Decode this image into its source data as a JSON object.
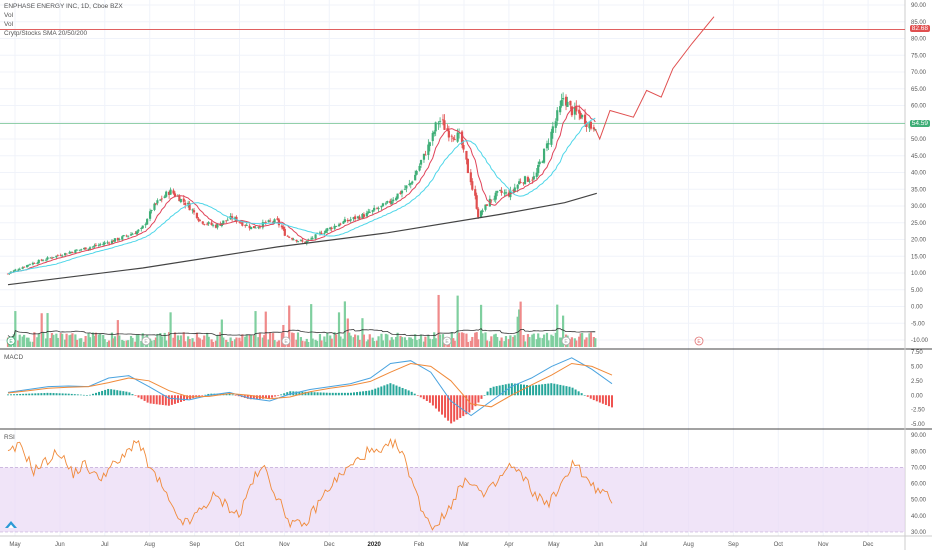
{
  "header": {
    "symbol_line": "ENPHASE ENERGY INC, 1D, Cboe BZX",
    "vol1": "Vol",
    "vol2": "Vol",
    "indicator": "Crytp/Stocks SMA 20/50/200"
  },
  "panes": {
    "macd_label": "MACD",
    "rsi_label": "RSI"
  },
  "price_labels": {
    "upper": "82.68",
    "current": "54.59"
  },
  "event_marker": "E",
  "colors": {
    "up": "#3fae77",
    "down": "#e04f4f",
    "sma20": "#e0445a",
    "sma50": "#4fd6e8",
    "sma200": "#444444",
    "hline": "#e06060",
    "cur_line": "#6fc18e",
    "macd": "#4aa3df",
    "signal": "#f08a3a",
    "rsi": "#f08a3a",
    "rsi_band": "#ead9f5"
  },
  "chart_data": [
    {
      "type": "candlestick",
      "title": "ENPHASE ENERGY INC, 1D, Cboe BZX",
      "x_ticks": [
        "May",
        "Jun",
        "Jul",
        "Aug",
        "Sep",
        "Oct",
        "Nov",
        "Dec",
        "2020",
        "Feb",
        "Mar",
        "Apr",
        "May",
        "Jun",
        "Jul",
        "Aug",
        "Sep",
        "Oct",
        "Nov",
        "Dec"
      ],
      "y_ticks": [
        "90.00",
        "85.00",
        "80.00",
        "75.00",
        "70.00",
        "65.00",
        "60.00",
        "55.00",
        "50.00",
        "45.00",
        "40.00",
        "35.00",
        "30.00",
        "25.00",
        "20.00",
        "15.00",
        "10.00",
        "5.00",
        "0.00",
        "-5.00",
        "-10.00"
      ],
      "ylim": [
        -10,
        90
      ],
      "horizontal_lines": [
        82.68,
        54.59
      ],
      "price_series": [
        {
          "date": "2019-05-01",
          "close": 9.8
        },
        {
          "date": "2019-05-15",
          "close": 12.5
        },
        {
          "date": "2019-06-01",
          "close": 14.8
        },
        {
          "date": "2019-06-15",
          "close": 16.5
        },
        {
          "date": "2019-07-01",
          "close": 18.2
        },
        {
          "date": "2019-07-15",
          "close": 20.0
        },
        {
          "date": "2019-08-01",
          "close": 23.0
        },
        {
          "date": "2019-08-08",
          "close": 29.5
        },
        {
          "date": "2019-08-20",
          "close": 34.5
        },
        {
          "date": "2019-09-01",
          "close": 30.5
        },
        {
          "date": "2019-09-10",
          "close": 25.5
        },
        {
          "date": "2019-09-20",
          "close": 24.0
        },
        {
          "date": "2019-10-01",
          "close": 26.5
        },
        {
          "date": "2019-10-15",
          "close": 23.5
        },
        {
          "date": "2019-10-25",
          "close": 25.0
        },
        {
          "date": "2019-11-01",
          "close": 25.5
        },
        {
          "date": "2019-11-08",
          "close": 21.0
        },
        {
          "date": "2019-11-20",
          "close": 19.0
        },
        {
          "date": "2019-12-01",
          "close": 22.0
        },
        {
          "date": "2019-12-15",
          "close": 25.0
        },
        {
          "date": "2020-01-01",
          "close": 27.5
        },
        {
          "date": "2020-01-15",
          "close": 30.5
        },
        {
          "date": "2020-02-01",
          "close": 37.0
        },
        {
          "date": "2020-02-10",
          "close": 45.5
        },
        {
          "date": "2020-02-20",
          "close": 56.0
        },
        {
          "date": "2020-02-26",
          "close": 52.0
        },
        {
          "date": "2020-03-05",
          "close": 50.5
        },
        {
          "date": "2020-03-12",
          "close": 38.0
        },
        {
          "date": "2020-03-18",
          "close": 27.0
        },
        {
          "date": "2020-03-25",
          "close": 31.5
        },
        {
          "date": "2020-04-01",
          "close": 34.0
        },
        {
          "date": "2020-04-08",
          "close": 33.5
        },
        {
          "date": "2020-04-15",
          "close": 37.5
        },
        {
          "date": "2020-04-25",
          "close": 38.5
        },
        {
          "date": "2020-05-01",
          "close": 45.0
        },
        {
          "date": "2020-05-08",
          "close": 54.0
        },
        {
          "date": "2020-05-15",
          "close": 62.5
        },
        {
          "date": "2020-05-20",
          "close": 58.5
        },
        {
          "date": "2020-05-27",
          "close": 57.0
        },
        {
          "date": "2020-06-03",
          "close": 53.5
        },
        {
          "date": "2020-06-06",
          "close": 54.59
        }
      ],
      "projection": [
        {
          "date": "2020-06-08",
          "close": 50.0
        },
        {
          "date": "2020-06-15",
          "close": 58.5
        },
        {
          "date": "2020-07-01",
          "close": 56.5
        },
        {
          "date": "2020-07-10",
          "close": 64.5
        },
        {
          "date": "2020-07-20",
          "close": 62.5
        },
        {
          "date": "2020-07-28",
          "close": 71.0
        },
        {
          "date": "2020-08-10",
          "close": 78.5
        },
        {
          "date": "2020-08-25",
          "close": 86.5
        }
      ],
      "sma_labels": [
        "SMA 20",
        "SMA 50",
        "SMA 200"
      ],
      "sma200": [
        {
          "date": "2019-05-01",
          "value": 6.5
        },
        {
          "date": "2019-08-01",
          "value": 11.5
        },
        {
          "date": "2019-11-01",
          "value": 17.8
        },
        {
          "date": "2020-01-15",
          "value": 22.0
        },
        {
          "date": "2020-04-01",
          "value": 27.5
        },
        {
          "date": "2020-05-15",
          "value": 31.0
        },
        {
          "date": "2020-06-06",
          "value": 33.8
        }
      ]
    },
    {
      "type": "bar",
      "title": "Vol",
      "note": "volume histogram with moving average, values relative"
    },
    {
      "type": "line",
      "title": "MACD",
      "y_ticks": [
        "7.50",
        "5.00",
        "2.50",
        "0.00",
        "-2.50",
        "-5.00"
      ],
      "ylim": [
        -5.5,
        7.5
      ],
      "series": [
        {
          "name": "MACD",
          "values": [
            0.5,
            1.0,
            1.5,
            1.6,
            1.5,
            3.0,
            3.4,
            1.5,
            -0.5,
            -0.8,
            0.0,
            0.5,
            -0.5,
            -1.0,
            0.2,
            1.0,
            1.5,
            2.0,
            3.0,
            5.5,
            6.0,
            4.0,
            -1.0,
            -3.5,
            -1.0,
            1.5,
            3.0,
            5.0,
            6.5,
            4.5,
            2.0
          ]
        },
        {
          "name": "Signal",
          "values": [
            0.4,
            0.8,
            1.2,
            1.4,
            1.5,
            2.2,
            3.0,
            2.5,
            0.8,
            -0.3,
            -0.2,
            0.3,
            0.0,
            -0.6,
            -0.3,
            0.6,
            1.2,
            1.7,
            2.4,
            4.0,
            5.5,
            5.0,
            2.5,
            -1.5,
            -2.0,
            0.0,
            1.8,
            3.5,
            5.5,
            5.0,
            3.5
          ]
        }
      ]
    },
    {
      "type": "line",
      "title": "RSI",
      "y_ticks": [
        "90.00",
        "80.00",
        "70.00",
        "60.00",
        "50.00",
        "40.00",
        "30.00"
      ],
      "ylim": [
        30,
        92
      ],
      "band": [
        30,
        70
      ],
      "series": [
        {
          "name": "RSI",
          "values": [
            78,
            84,
            68,
            74,
            80,
            66,
            72,
            63,
            70,
            76,
            88,
            70,
            58,
            40,
            35,
            44,
            52,
            47,
            40,
            62,
            70,
            50,
            36,
            33,
            46,
            58,
            66,
            73,
            80,
            78,
            86,
            73,
            48,
            33,
            40,
            56,
            63,
            52,
            60,
            71,
            65,
            53,
            48,
            57,
            75,
            62,
            55,
            50
          ]
        }
      ]
    }
  ]
}
